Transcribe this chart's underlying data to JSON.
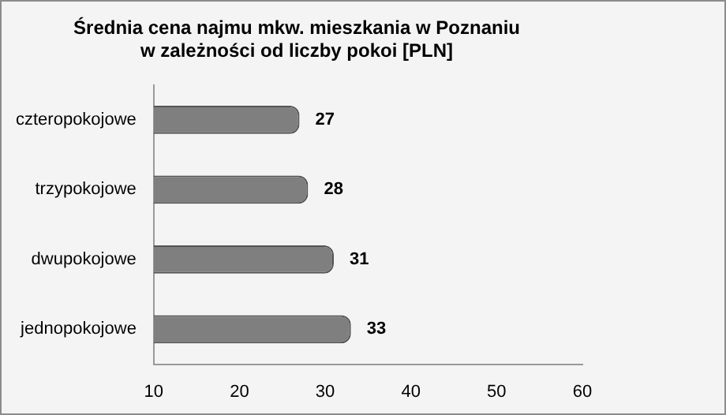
{
  "chart_data": {
    "type": "bar",
    "orientation": "horizontal",
    "title": "Średnia cena najmu mkw. mieszkania w Poznaniu\nw zależności od liczby pokoi [PLN]",
    "categories": [
      "czteropokojowe",
      "trzypokojowe",
      "dwupokojowe",
      "jednopokojowe"
    ],
    "values": [
      27,
      28,
      31,
      33
    ],
    "color": "#7f7f7f",
    "xlim": [
      10,
      60
    ],
    "xticks": [
      10,
      20,
      30,
      40,
      50,
      60
    ],
    "grid": false,
    "legend": false,
    "data_labels": true
  }
}
